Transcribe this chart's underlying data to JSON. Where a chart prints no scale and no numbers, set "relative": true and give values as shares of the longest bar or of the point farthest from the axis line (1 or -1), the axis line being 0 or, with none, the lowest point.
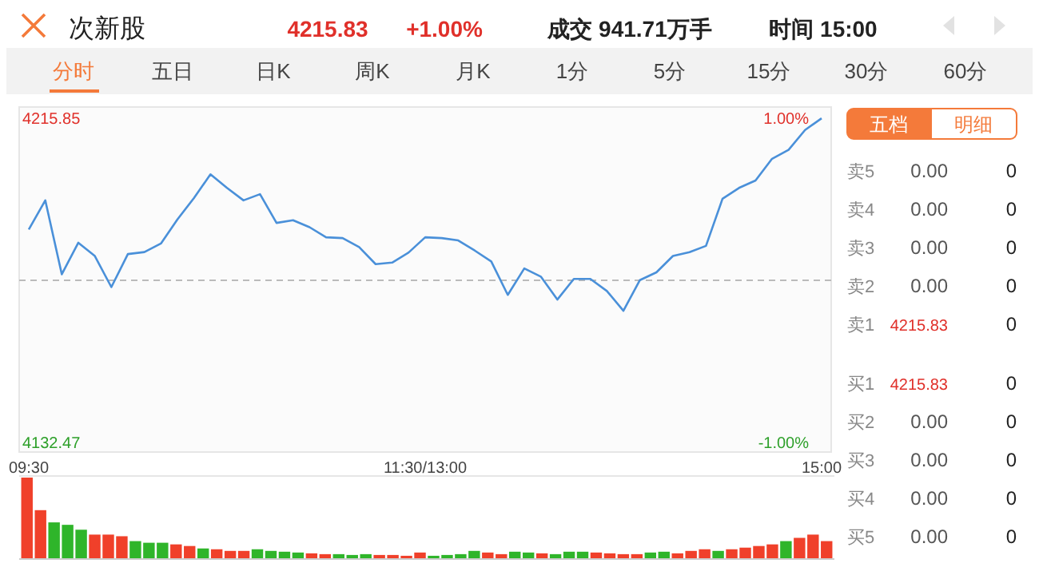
{
  "chart_data": [
    {
      "type": "line",
      "title": "次新股",
      "annotations": [
        "4215.83",
        "+1.00%",
        "成交 941.71万手",
        "时间 15:00"
      ],
      "categories": [
        "09:30",
        null,
        null,
        null,
        null,
        null,
        null,
        null,
        null,
        null,
        null,
        null,
        null,
        null,
        null,
        null,
        null,
        null,
        null,
        null,
        null,
        null,
        null,
        null,
        "11:30/13:00",
        null,
        null,
        null,
        null,
        null,
        null,
        null,
        null,
        null,
        null,
        null,
        null,
        null,
        null,
        null,
        null,
        null,
        null,
        null,
        null,
        null,
        null,
        null,
        "15:00"
      ],
      "series": [
        {
          "color": "#4a90d9",
          "values": [
            4187.2,
            4194.7,
            4175.7,
            4183.8,
            4180.4,
            4172.4,
            4180.9,
            4181.4,
            4183.6,
            4189.8,
            4195.3,
            4201.4,
            4197.9,
            4194.7,
            4196.3,
            4188.9,
            4189.6,
            4187.8,
            4185.2,
            4185.0,
            4182.7,
            4178.3,
            4178.7,
            4181.3,
            4185.2,
            4185.0,
            4184.4,
            4181.8,
            4179.0,
            4170.4,
            4177.2,
            4175.1,
            4169.2,
            4174.5,
            4174.5,
            4171.4,
            4166.3,
            4174.2,
            4176.2,
            4180.4,
            4181.4,
            4183.0,
            4195.1,
            4197.9,
            4199.8,
            4205.4,
            4207.7,
            4212.8,
            4215.8
          ]
        }
      ],
      "ylim": [
        4130.0,
        4218.7
      ],
      "yticks": [
        4132.47,
        4215.85
      ],
      "y2lim": [
        -1.06,
        1.07
      ],
      "y2ticks": [
        {
          "value": -1,
          "label": "-1.00%"
        },
        {
          "value": 1,
          "label": "1.00%"
        }
      ],
      "ref_lines": [
        {
          "axis": "y",
          "value": 4174.16,
          "color": "#bbbbbb",
          "line_style": "dashed"
        }
      ],
      "grid": false
    },
    {
      "type": "bar",
      "relative": true,
      "categories": [
        null,
        null,
        null,
        null,
        null,
        null,
        null,
        null,
        null,
        null,
        null,
        null,
        null,
        null,
        null,
        null,
        null,
        null,
        null,
        null,
        null,
        null,
        null,
        null,
        null,
        null,
        null,
        null,
        null,
        null,
        null,
        null,
        null,
        null,
        null,
        null,
        null,
        null,
        null,
        null,
        null,
        null,
        null,
        null,
        null,
        null,
        null,
        null,
        null,
        null,
        null,
        null,
        null,
        null,
        null,
        null,
        null,
        null,
        null,
        null
      ],
      "values": [
        1,
        0.6,
        0.45,
        0.42,
        0.36,
        0.3,
        0.3,
        0.28,
        0.22,
        0.2,
        0.2,
        0.18,
        0.16,
        0.13,
        0.12,
        0.1,
        0.1,
        0.12,
        0.1,
        0.09,
        0.08,
        0.07,
        0.06,
        0.06,
        0.05,
        0.06,
        0.05,
        0.05,
        0.04,
        0.08,
        0.04,
        0.05,
        0.06,
        0.1,
        0.08,
        0.06,
        0.09,
        0.08,
        0.07,
        0.06,
        0.09,
        0.09,
        0.08,
        0.07,
        0.06,
        0.06,
        0.08,
        0.09,
        0.07,
        0.1,
        0.12,
        0.1,
        0.12,
        0.14,
        0.16,
        0.18,
        0.22,
        0.26,
        0.3,
        0.22
      ],
      "colors": [
        "#f0402a",
        "#f0402a",
        "#2fb52a",
        "#2fb52a",
        "#2fb52a",
        "#f0402a",
        "#f0402a",
        "#f0402a",
        "#2fb52a",
        "#2fb52a",
        "#2fb52a",
        "#f0402a",
        "#f0402a",
        "#2fb52a",
        "#f0402a",
        "#f0402a",
        "#f0402a",
        "#2fb52a",
        "#2fb52a",
        "#2fb52a",
        "#2fb52a",
        "#f0402a",
        "#f0402a",
        "#2fb52a",
        "#2fb52a",
        "#2fb52a",
        "#f0402a",
        "#f0402a",
        "#f0402a",
        "#f0402a",
        "#2fb52a",
        "#2fb52a",
        "#2fb52a",
        "#2fb52a",
        "#f0402a",
        "#f0402a",
        "#2fb52a",
        "#2fb52a",
        "#f0402a",
        "#2fb52a",
        "#2fb52a",
        "#2fb52a",
        "#f0402a",
        "#f0402a",
        "#f0402a",
        "#f0402a",
        "#2fb52a",
        "#2fb52a",
        "#f0402a",
        "#f0402a",
        "#f0402a",
        "#2fb52a",
        "#f0402a",
        "#f0402a",
        "#f0402a",
        "#f0402a",
        "#2fb52a",
        "#f0402a",
        "#f0402a",
        "#f0402a"
      ]
    },
    {
      "type": "other",
      "annotations": [
        "五档",
        "明细"
      ],
      "categories": [
        "卖5",
        "卖4",
        "卖3",
        "卖2",
        "卖1",
        "买1",
        "买2",
        "买3",
        "买4",
        "买5"
      ],
      "series": [
        {
          "values": [
            0,
            0,
            0,
            0,
            4215.83,
            4215.83,
            0,
            0,
            0,
            0
          ],
          "value_labels": [
            "0.00",
            "0.00",
            "0.00",
            "0.00",
            "4215.83",
            "4215.83",
            "0.00",
            "0.00",
            "0.00",
            "0.00"
          ],
          "colors": [
            "#555555",
            "#555555",
            "#555555",
            "#555555",
            "#e0302a",
            "#e0302a",
            "#555555",
            "#555555",
            "#555555",
            "#555555"
          ]
        },
        {
          "values": [
            0,
            0,
            0,
            0,
            0,
            0,
            0,
            0,
            0,
            0
          ],
          "color": "#222222"
        }
      ],
      "data_labels": true
    },
    {
      "type": "other",
      "annotations": [
        "分时",
        "五日",
        "日K",
        "周K",
        "月K",
        "1分",
        "5分",
        "15分",
        "30分",
        "60分"
      ]
    }
  ]
}
